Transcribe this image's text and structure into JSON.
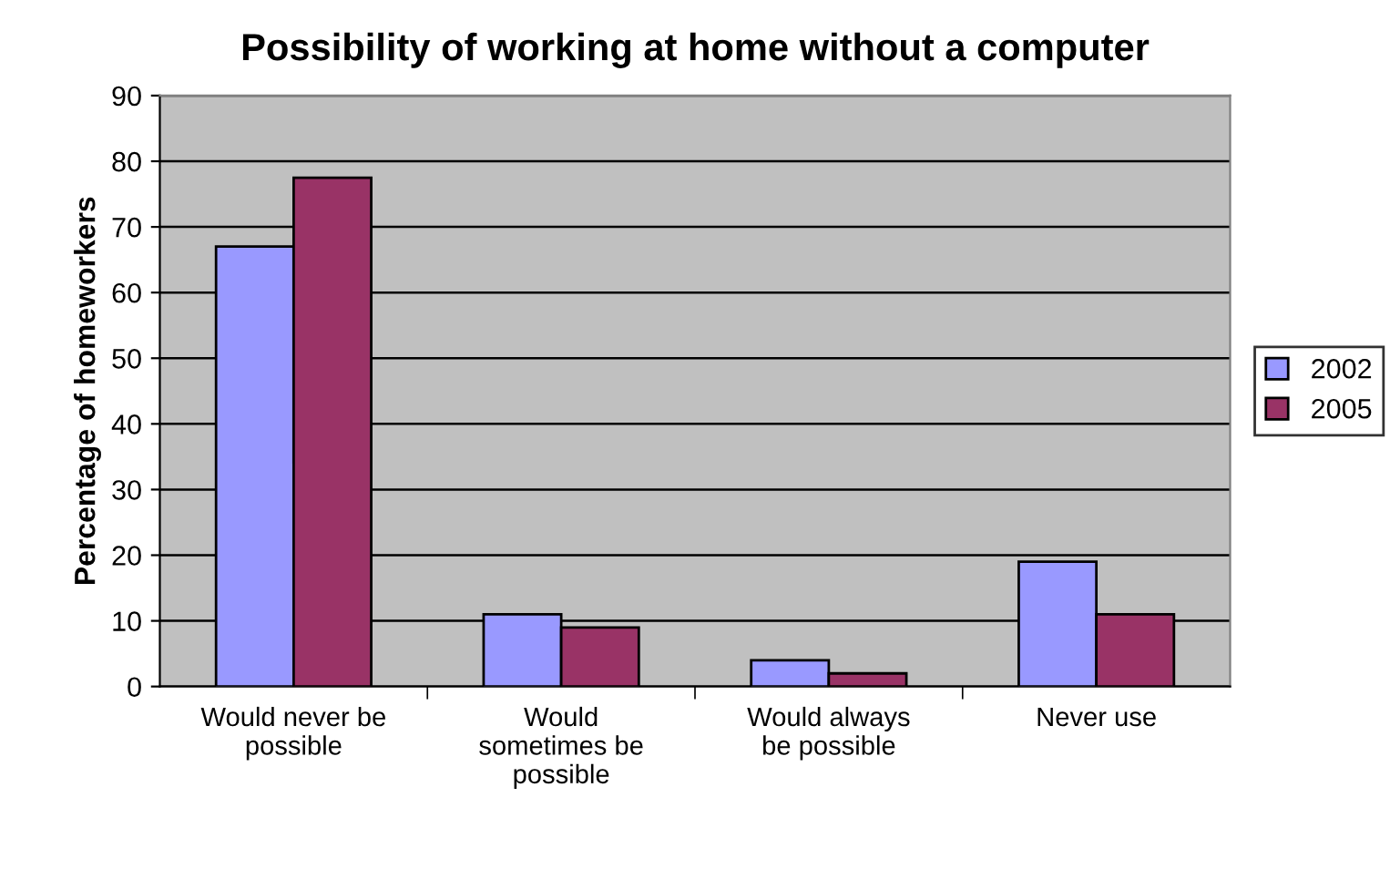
{
  "chart_data": {
    "type": "bar",
    "title": "Possibility of working at home without a computer",
    "ylabel": "Percentage of homeworkers",
    "categories": [
      "Would never be\npossible",
      "Would\nsometimes be\npossible",
      "Would always\nbe possible",
      "Never use"
    ],
    "series": [
      {
        "name": "2002",
        "color": "#9999ff",
        "values": [
          67,
          11,
          4,
          19
        ]
      },
      {
        "name": "2005",
        "color": "#993366",
        "values": [
          77.5,
          9,
          2,
          11
        ]
      }
    ],
    "ylim": [
      0,
      90
    ],
    "yticks": [
      0,
      10,
      20,
      30,
      40,
      50,
      60,
      70,
      80,
      90
    ],
    "grid": "y",
    "legend": "right"
  }
}
